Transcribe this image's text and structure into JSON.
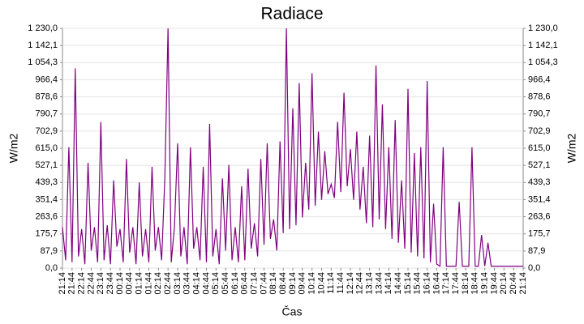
{
  "chart_data": {
    "type": "line",
    "title": "Radiace",
    "xlabel": "Čas",
    "ylabel": "W/m2",
    "categories": [
      "21:14",
      null,
      null,
      "21:44",
      null,
      null,
      "22:14",
      null,
      null,
      "22:44",
      null,
      null,
      "23:14",
      null,
      null,
      "23:44",
      null,
      null,
      "00:14",
      null,
      null,
      "00:44",
      null,
      null,
      "01:14",
      null,
      null,
      "01:44",
      null,
      null,
      "02:14",
      null,
      null,
      "02:44",
      null,
      null,
      "03:14",
      null,
      null,
      "03:44",
      null,
      null,
      "04:14",
      null,
      null,
      "04:44",
      null,
      null,
      "05:14",
      null,
      null,
      "05:44",
      null,
      null,
      "06:14",
      null,
      null,
      "06:44",
      null,
      null,
      "07:14",
      null,
      null,
      "07:44",
      null,
      null,
      "08:14",
      null,
      null,
      "08:44",
      null,
      null,
      "09:14",
      null,
      null,
      "09:44",
      null,
      null,
      "10:14",
      null,
      null,
      "10:44",
      null,
      null,
      "11:14",
      null,
      null,
      "11:44",
      null,
      null,
      "12:14",
      null,
      null,
      "12:44",
      null,
      null,
      "13:14",
      null,
      null,
      "13:44",
      null,
      null,
      "14:14",
      null,
      null,
      "14:44",
      null,
      null,
      "15:14",
      null,
      null,
      "15:44",
      null,
      null,
      "16:14",
      null,
      null,
      "16:44",
      null,
      null,
      "17:14",
      null,
      null,
      "17:44",
      null,
      null,
      "18:14",
      null,
      null,
      "18:44",
      null,
      null,
      "19:14",
      null,
      null,
      "19:44",
      null,
      null,
      "20:14",
      null,
      null,
      "20:44",
      null,
      null,
      "21:14"
    ],
    "series": [
      {
        "name": "Radiace",
        "color": "#800080",
        "values": [
          210,
          40,
          620,
          30,
          1025,
          60,
          200,
          20,
          540,
          90,
          210,
          30,
          750,
          40,
          220,
          20,
          450,
          110,
          200,
          30,
          560,
          80,
          210,
          20,
          440,
          60,
          200,
          30,
          520,
          90,
          210,
          40,
          460,
          1230,
          30,
          210,
          640,
          60,
          210,
          20,
          620,
          100,
          210,
          40,
          520,
          30,
          740,
          60,
          200,
          20,
          460,
          90,
          530,
          40,
          210,
          30,
          420,
          40,
          510,
          100,
          230,
          60,
          560,
          120,
          640,
          150,
          250,
          90,
          650,
          180,
          1230,
          200,
          820,
          220,
          950,
          260,
          540,
          300,
          1000,
          320,
          700,
          350,
          600,
          380,
          430,
          360,
          750,
          390,
          900,
          420,
          610,
          350,
          700,
          300,
          520,
          230,
          680,
          210,
          1040,
          250,
          840,
          200,
          620,
          150,
          760,
          130,
          450,
          100,
          920,
          80,
          590,
          60,
          620,
          50,
          960,
          30,
          330,
          20,
          10,
          620,
          10,
          10,
          10,
          10,
          340,
          10,
          10,
          10,
          620,
          10,
          10,
          170,
          10,
          130,
          10,
          10,
          10,
          10,
          10,
          10,
          10,
          10,
          10,
          10,
          10
        ]
      }
    ],
    "ylim": [
      0,
      1230
    ],
    "yticks": [
      {
        "value": 0,
        "label": "0,0"
      },
      {
        "value": 87.9,
        "label": "87,9"
      },
      {
        "value": 175.7,
        "label": "175,7"
      },
      {
        "value": 263.6,
        "label": "263,6"
      },
      {
        "value": 351.4,
        "label": "351,4"
      },
      {
        "value": 439.3,
        "label": "439,3"
      },
      {
        "value": 527.1,
        "label": "527,1"
      },
      {
        "value": 615.0,
        "label": "615,0"
      },
      {
        "value": 702.9,
        "label": "702,9"
      },
      {
        "value": 790.7,
        "label": "790,7"
      },
      {
        "value": 878.6,
        "label": "878,6"
      },
      {
        "value": 966.4,
        "label": "966,4"
      },
      {
        "value": 1054.3,
        "label": "1 054,3"
      },
      {
        "value": 1142.1,
        "label": "1 142,1"
      },
      {
        "value": 1230.0,
        "label": "1 230,0"
      }
    ],
    "grid": true
  }
}
